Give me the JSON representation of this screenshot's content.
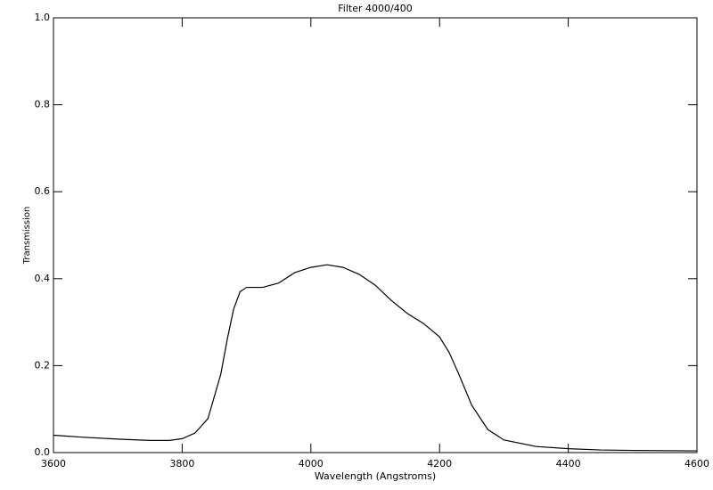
{
  "chart_data": {
    "type": "line",
    "title": "Filter 4000/400",
    "xlabel": "Wavelength (Angstroms)",
    "ylabel": "Transmission",
    "xlim": [
      3600,
      4600
    ],
    "xticks": [
      3600,
      3800,
      4000,
      4200,
      4400,
      4600
    ],
    "ylim": [
      0,
      1
    ],
    "yticks": [
      {
        "value": 0,
        "label": "0.0"
      },
      0.2,
      0.4,
      0.6,
      0.8,
      {
        "value": 1,
        "label": "1.0"
      }
    ],
    "color": "#000000",
    "x": [
      3600,
      3650,
      3700,
      3750,
      3780,
      3800,
      3820,
      3840,
      3860,
      3870,
      3880,
      3890,
      3900,
      3925,
      3950,
      3975,
      4000,
      4025,
      4050,
      4075,
      4100,
      4125,
      4150,
      4175,
      4200,
      4215,
      4230,
      4250,
      4275,
      4300,
      4350,
      4400,
      4450,
      4500,
      4600
    ],
    "values": [
      0.04,
      0.035,
      0.031,
      0.028,
      0.028,
      0.032,
      0.045,
      0.078,
      0.18,
      0.26,
      0.33,
      0.37,
      0.38,
      0.38,
      0.39,
      0.414,
      0.426,
      0.432,
      0.426,
      0.41,
      0.385,
      0.35,
      0.32,
      0.297,
      0.266,
      0.23,
      0.18,
      0.109,
      0.053,
      0.029,
      0.014,
      0.009,
      0.006,
      0.005,
      0.004
    ]
  }
}
